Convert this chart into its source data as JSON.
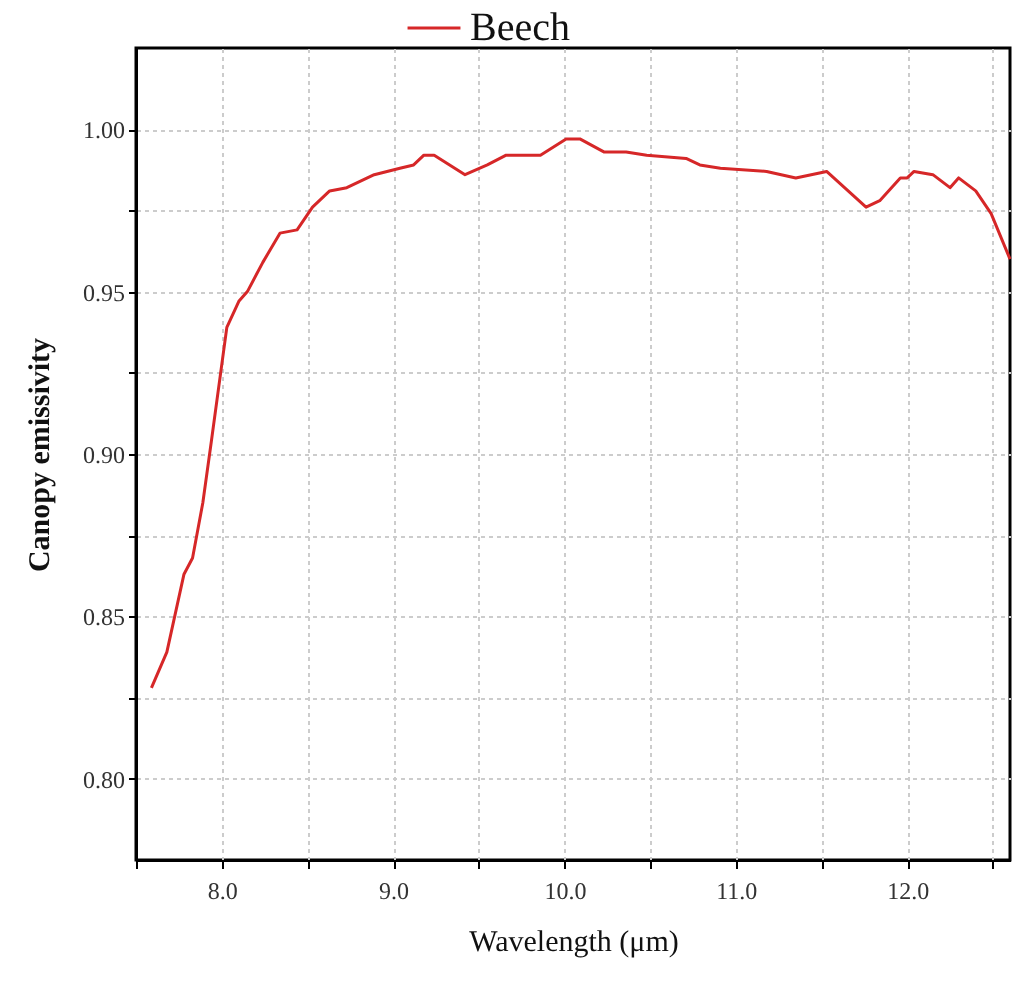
{
  "chart_data": {
    "type": "line",
    "xlabel": "Wavelength (μm)",
    "ylabel": "Canopy emissivity",
    "legend": "top",
    "grid": true,
    "xlim": [
      7.5,
      12.6
    ],
    "ylim": [
      0.775,
      1.025
    ],
    "xticks": [
      {
        "value": 7.5,
        "label": null
      },
      {
        "value": 8,
        "label": "8.0"
      },
      {
        "value": 8.5,
        "label": null
      },
      {
        "value": 9,
        "label": "9.0"
      },
      {
        "value": 9.5,
        "label": null
      },
      {
        "value": 10,
        "label": "10.0"
      },
      {
        "value": 10.5,
        "label": null
      },
      {
        "value": 11,
        "label": "11.0"
      },
      {
        "value": 11.5,
        "label": null
      },
      {
        "value": 12,
        "label": "12.0"
      },
      {
        "value": 12.5,
        "label": null
      }
    ],
    "yticks": [
      {
        "value": 0.8,
        "label": "0.80"
      },
      {
        "value": 0.825,
        "label": null
      },
      {
        "value": 0.85,
        "label": "0.85"
      },
      {
        "value": 0.875,
        "label": null
      },
      {
        "value": 0.9,
        "label": "0.90"
      },
      {
        "value": 0.925,
        "label": null
      },
      {
        "value": 0.95,
        "label": "0.95"
      },
      {
        "value": 0.975,
        "label": null
      },
      {
        "value": 1,
        "label": "1.00"
      }
    ],
    "series": [
      {
        "name": "Beech",
        "color": "#d62728",
        "x": [
          7.59,
          7.68,
          7.78,
          7.83,
          7.89,
          7.94,
          8.03,
          8.1,
          8.15,
          8.24,
          8.34,
          8.44,
          8.53,
          8.63,
          8.73,
          8.89,
          9.04,
          9.12,
          9.18,
          9.24,
          9.42,
          9.55,
          9.66,
          9.86,
          10.01,
          10.09,
          10.23,
          10.36,
          10.48,
          10.71,
          10.79,
          10.91,
          11.18,
          11.35,
          11.53,
          11.76,
          11.84,
          11.96,
          12.0,
          12.04,
          12.15,
          12.25,
          12.3,
          12.4,
          12.49,
          12.6
        ],
        "values": [
          0.828,
          0.839,
          0.863,
          0.868,
          0.885,
          0.904,
          0.939,
          0.947,
          0.95,
          0.959,
          0.968,
          0.969,
          0.976,
          0.981,
          0.982,
          0.986,
          0.988,
          0.989,
          0.992,
          0.992,
          0.986,
          0.989,
          0.992,
          0.992,
          0.997,
          0.997,
          0.993,
          0.993,
          0.992,
          0.991,
          0.989,
          0.988,
          0.987,
          0.985,
          0.987,
          0.976,
          0.978,
          0.985,
          0.985,
          0.987,
          0.986,
          0.982,
          0.985,
          0.981,
          0.974,
          0.96
        ]
      }
    ]
  }
}
